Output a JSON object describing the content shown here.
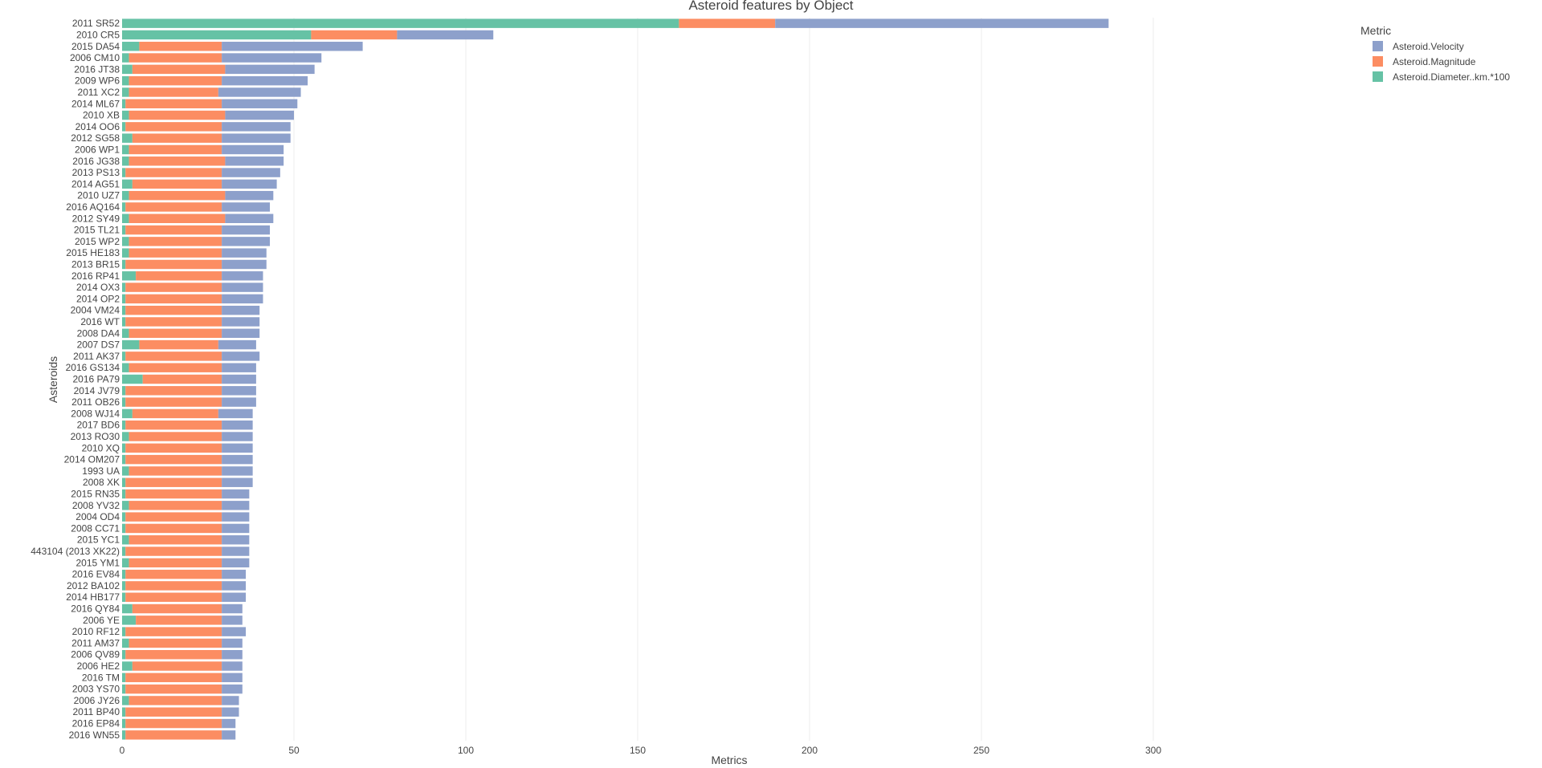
{
  "chart_data": {
    "type": "bar",
    "orientation": "horizontal",
    "barmode": "stack",
    "title": "Asteroid features by Object",
    "xlabel": "Metrics",
    "ylabel": "Asteroids",
    "xlim": [
      0,
      350
    ],
    "xticks": [
      0,
      50,
      100,
      150,
      200,
      250,
      300
    ],
    "grid": "vertical",
    "legend": {
      "title": "Metric",
      "placement": "top-right",
      "items": [
        "Asteroid.Velocity",
        "Asteroid.Magnitude",
        "Asteroid.Diameter..km.*100"
      ]
    },
    "categories": [
      "2011 SR52",
      "2010 CR5",
      "2015 DA54",
      "2006 CM10",
      "2016 JT38",
      "2009 WP6",
      "2011 XC2",
      "2014 ML67",
      "2010 XB",
      "2014 OO6",
      "2012 SG58",
      "2006 WP1",
      "2016 JG38",
      "2013 PS13",
      "2014 AG51",
      "2010 UZ7",
      "2016 AQ164",
      "2012 SY49",
      "2015 TL21",
      "2015 WP2",
      "2015 HE183",
      "2013 BR15",
      "2016 RP41",
      "2014 OX3",
      "2014 OP2",
      "2004 VM24",
      "2016 WT",
      "2008 DA4",
      "2007 DS7",
      "2011 AK37",
      "2016 GS134",
      "2016 PA79",
      "2014 JV79",
      "2011 OB26",
      "2008 WJ14",
      "2017 BD6",
      "2013 RO30",
      "2010 XQ",
      "2014 OM207",
      "1993 UA",
      "2008 XK",
      "2015 RN35",
      "2008 YV32",
      "2004 OD4",
      "2008 CC71",
      "2015 YC1",
      "443104 (2013 XK22)",
      "2015 YM1",
      "2016 EV84",
      "2012 BA102",
      "2014 HB177",
      "2016 QY84",
      "2006 YE",
      "2010 RF12",
      "2011 AM37",
      "2006 QV89",
      "2006 HE2",
      "2016 TM",
      "2003 YS70",
      "2006 JY26",
      "2011 BP40",
      "2016 EP84",
      "2016 WN55"
    ],
    "series": [
      {
        "name": "Asteroid.Diameter..km.*100",
        "color": "#66c2a5",
        "values": [
          162,
          55,
          5,
          2,
          3,
          2,
          2,
          1,
          2,
          1,
          3,
          2,
          2,
          1,
          3,
          2,
          1,
          2,
          1,
          2,
          2,
          1,
          4,
          1,
          1,
          1,
          1,
          2,
          5,
          1,
          2,
          6,
          1,
          1,
          3,
          1,
          2,
          1,
          1,
          2,
          1,
          1,
          2,
          1,
          1,
          2,
          1,
          2,
          1,
          1,
          1,
          3,
          4,
          1,
          2,
          1,
          3,
          1,
          1,
          2,
          1,
          1,
          1
        ]
      },
      {
        "name": "Asteroid.Magnitude",
        "color": "#fc8d62",
        "values": [
          28,
          25,
          24,
          27,
          27,
          27,
          26,
          28,
          28,
          28,
          26,
          27,
          28,
          28,
          26,
          28,
          28,
          28,
          28,
          27,
          27,
          28,
          25,
          28,
          28,
          28,
          28,
          27,
          23,
          28,
          27,
          23,
          28,
          28,
          25,
          28,
          27,
          28,
          28,
          27,
          28,
          28,
          27,
          28,
          28,
          27,
          28,
          27,
          28,
          28,
          28,
          26,
          25,
          28,
          27,
          28,
          26,
          28,
          28,
          27,
          28,
          28,
          28
        ]
      },
      {
        "name": "Asteroid.Velocity",
        "color": "#8da0cb",
        "values": [
          97,
          28,
          41,
          29,
          26,
          25,
          24,
          22,
          20,
          20,
          20,
          18,
          17,
          17,
          16,
          14,
          14,
          14,
          14,
          14,
          13,
          13,
          12,
          12,
          12,
          11,
          11,
          11,
          11,
          11,
          10,
          10,
          10,
          10,
          10,
          9,
          9,
          9,
          9,
          9,
          9,
          8,
          8,
          8,
          8,
          8,
          8,
          8,
          7,
          7,
          7,
          6,
          6,
          7,
          6,
          6,
          6,
          6,
          6,
          5,
          5,
          4,
          4
        ]
      }
    ]
  }
}
